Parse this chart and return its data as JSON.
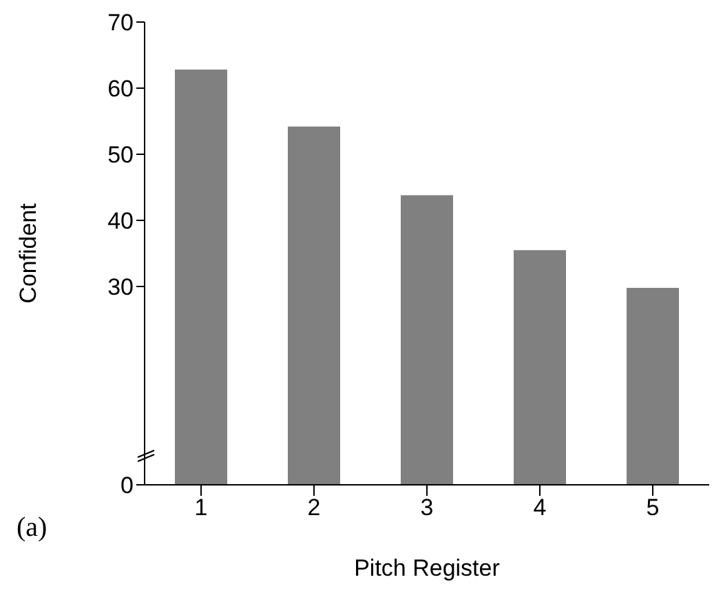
{
  "chart_data": {
    "type": "bar",
    "xlabel": "Pitch Register",
    "ylabel": "Confident",
    "categories": [
      "1",
      "2",
      "3",
      "4",
      "5"
    ],
    "values": [
      62.8,
      54.2,
      43.8,
      35.5,
      29.8
    ],
    "color": "#808080",
    "ylim": [
      0,
      70
    ],
    "yticks": [
      0,
      30,
      40,
      50,
      60,
      70
    ],
    "grid": false,
    "annotations": [
      "(a)"
    ]
  }
}
